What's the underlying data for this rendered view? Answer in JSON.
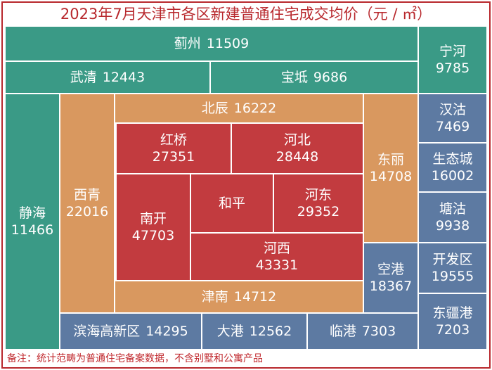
{
  "header": {
    "title": "2023年7月天津市各区新建普通住宅成交均价（元 / ㎡）"
  },
  "nodes": [
    {
      "name": "蓟州",
      "value": 11509
    },
    {
      "name": "武清",
      "value": 12443
    },
    {
      "name": "宝坻",
      "value": 9686
    },
    {
      "name": "宁河",
      "value": 9785
    },
    {
      "name": "静海",
      "value": 11466
    },
    {
      "name": "西青",
      "value": 22016
    },
    {
      "name": "北辰",
      "value": 16222
    },
    {
      "name": "东丽",
      "value": 14708
    },
    {
      "name": "津南",
      "value": 14712
    },
    {
      "name": "红桥",
      "value": 27351
    },
    {
      "name": "河北",
      "value": 28448
    },
    {
      "name": "南开",
      "value": 47703
    },
    {
      "name": "和平"
    },
    {
      "name": "河东",
      "value": 29352
    },
    {
      "name": "河西",
      "value": 43331
    },
    {
      "name": "空港",
      "value": 18367
    },
    {
      "name": "滨海高新区",
      "value": 14295
    },
    {
      "name": "大港",
      "value": 12562
    },
    {
      "name": "临港",
      "value": 7303
    },
    {
      "name": "汉沽",
      "value": 7469
    },
    {
      "name": "生态城",
      "value": 16002
    },
    {
      "name": "塘沽",
      "value": 9938
    },
    {
      "name": "开发区",
      "value": 19555
    },
    {
      "name": "东疆港",
      "value": 7203
    }
  ],
  "footer": {
    "note": "备注：统计范畴为普通住宅备案数据，不含别墅和公寓产品"
  }
}
